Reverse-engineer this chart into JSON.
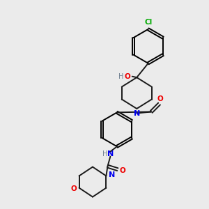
{
  "background_color": "#ebebeb",
  "bond_color": "#1a1a1a",
  "atom_colors": {
    "N": "#0000ee",
    "O": "#ee0000",
    "Cl": "#00aa00",
    "H": "#708090",
    "C": "#1a1a1a"
  },
  "figsize": [
    3.0,
    3.0
  ],
  "dpi": 100,
  "lw": 1.4,
  "fs": 7.0
}
